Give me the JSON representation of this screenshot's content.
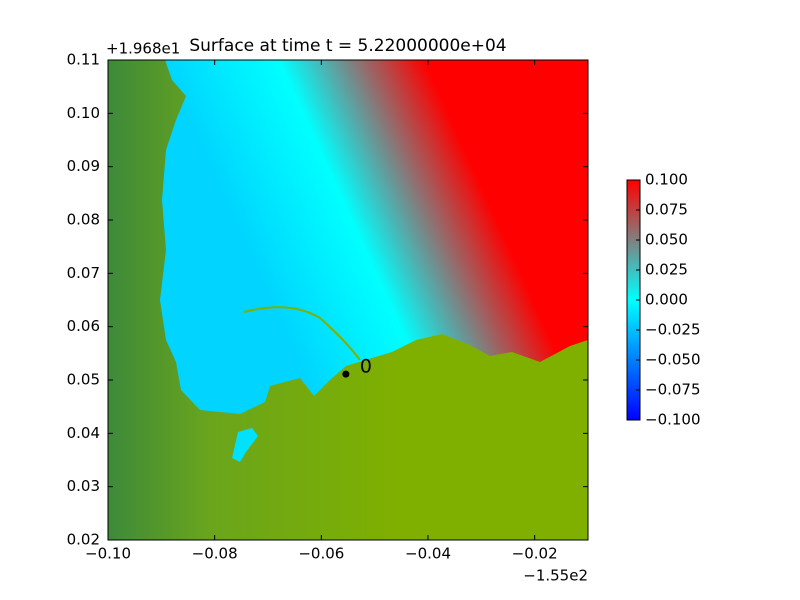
{
  "chart_data": {
    "type": "heatmap",
    "title": "Surface at time t = 5.22000000e+04",
    "x_offset_label": "−1.55e2",
    "y_offset_label": "+1.968e1",
    "xlim": [
      -0.1,
      -0.01
    ],
    "xticks": [
      {
        "value": -0.1,
        "label": "−0.10"
      },
      {
        "value": -0.08,
        "label": "−0.08"
      },
      {
        "value": -0.06,
        "label": "−0.06"
      },
      {
        "value": -0.04,
        "label": "−0.04"
      },
      {
        "value": -0.02,
        "label": "−0.02"
      }
    ],
    "ylim": [
      0.02,
      0.11
    ],
    "yticks": [
      0.02,
      0.03,
      0.04,
      0.05,
      0.06,
      0.07,
      0.08,
      0.09,
      {
        "value": 0.1,
        "label": "0.10"
      },
      0.11
    ],
    "colorbar": {
      "clim": [
        -0.1,
        0.1
      ],
      "ticks": [
        {
          "value": 0.1,
          "label": "0.100"
        },
        {
          "value": 0.075,
          "label": "0.075"
        },
        {
          "value": 0.05,
          "label": "0.050"
        },
        {
          "value": 0.025,
          "label": "0.025"
        },
        {
          "value": 0,
          "label": "0.000"
        },
        {
          "value": -0.025,
          "label": "−0.025"
        },
        {
          "value": -0.05,
          "label": "−0.050"
        },
        {
          "value": -0.075,
          "label": "−0.075"
        },
        {
          "value": -0.1,
          "label": "−0.100"
        }
      ]
    },
    "gauges": [
      {
        "label": "0",
        "x": -0.0554,
        "y": 0.0511
      }
    ]
  }
}
